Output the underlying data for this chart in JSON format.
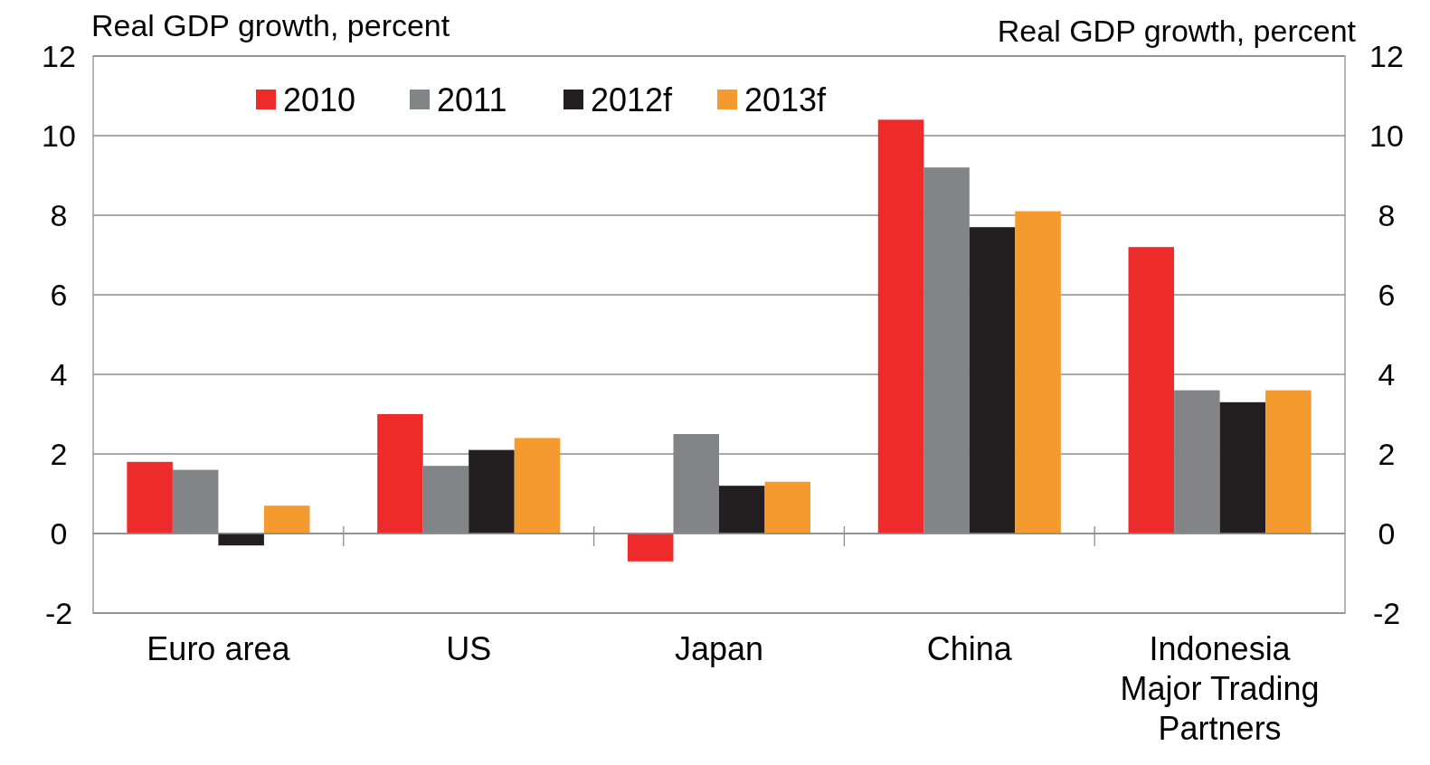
{
  "chart_data": {
    "type": "bar",
    "ylabel": "Real GDP growth, percent",
    "y2label": "Real GDP growth, percent",
    "categories": [
      "Euro area",
      "US",
      "Japan",
      "China",
      "Indonesia Major Trading Partners"
    ],
    "series": [
      {
        "name": "2010",
        "color": "#ed2b2b",
        "values": [
          1.8,
          3.0,
          -0.7,
          10.4,
          7.2
        ]
      },
      {
        "name": "2011",
        "color": "#838488",
        "values": [
          1.6,
          1.7,
          2.5,
          9.2,
          3.6
        ]
      },
      {
        "name": "2012f",
        "color": "#231f20",
        "values": [
          -0.3,
          2.1,
          1.2,
          7.7,
          3.3
        ]
      },
      {
        "name": "2013f",
        "color": "#f49a2f",
        "values": [
          0.7,
          2.4,
          1.3,
          8.1,
          3.6
        ]
      }
    ],
    "ylim": [
      -2,
      12
    ],
    "yticks": [
      -2,
      0,
      2,
      4,
      6,
      8,
      10,
      12
    ],
    "y2lim": [
      -2,
      12
    ],
    "y2ticks": [
      -2,
      0,
      2,
      4,
      6,
      8,
      10,
      12
    ],
    "grid": "y",
    "legend": "top left"
  }
}
